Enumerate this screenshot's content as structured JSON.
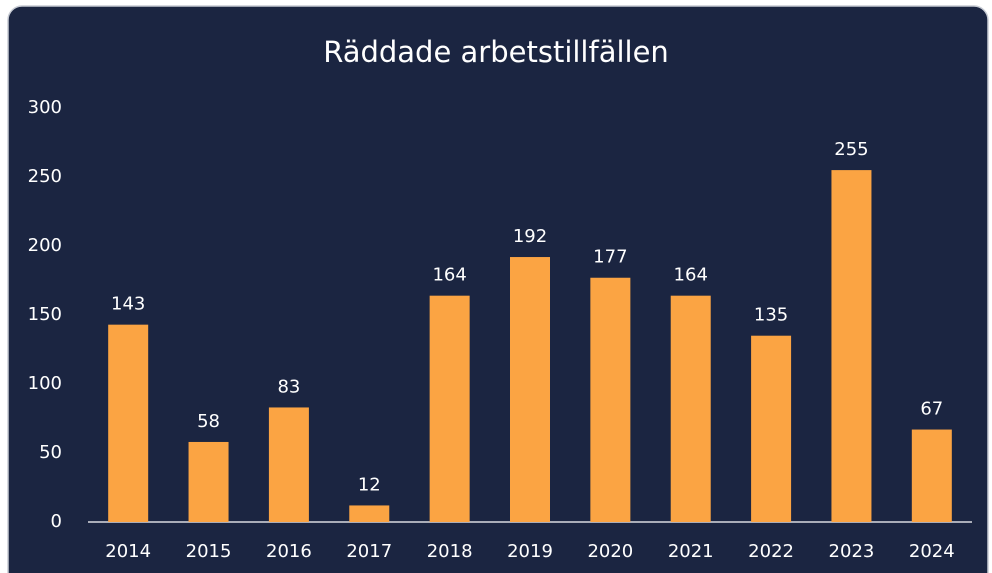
{
  "chart_data": {
    "type": "bar",
    "title": "Räddade arbetstillfällen",
    "categories": [
      "2014",
      "2015",
      "2016",
      "2017",
      "2018",
      "2019",
      "2020",
      "2021",
      "2022",
      "2023",
      "2024"
    ],
    "values": [
      143,
      58,
      83,
      12,
      164,
      192,
      177,
      164,
      135,
      255,
      67
    ],
    "color": "#fba443",
    "ylim": [
      0,
      300
    ],
    "yticks": [
      0,
      50,
      100,
      150,
      200,
      250,
      300
    ],
    "grid": false
  }
}
